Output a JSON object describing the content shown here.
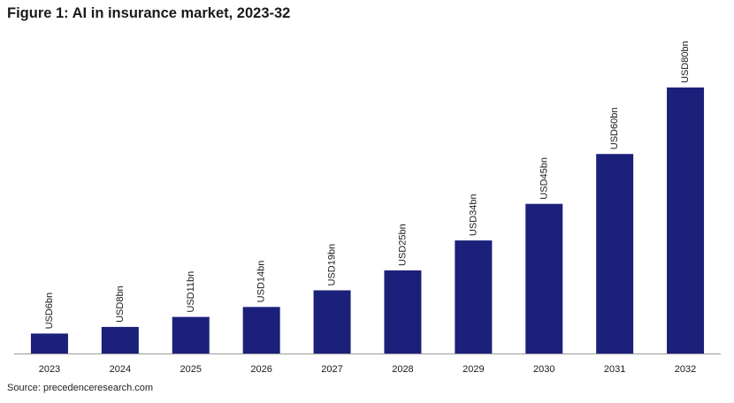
{
  "header": {
    "title": "Figure 1: AI in insurance market, 2023-32"
  },
  "footer": {
    "source": "Source: precedenceresearch.com"
  },
  "colors": {
    "bar": "#1b207a",
    "baseline": "#9a9a9a"
  },
  "chart_data": {
    "type": "bar",
    "title": "Figure 1: AI in insurance market, 2023-32",
    "xlabel": "",
    "ylabel": "",
    "categories": [
      "2023",
      "2024",
      "2025",
      "2026",
      "2027",
      "2028",
      "2029",
      "2030",
      "2031",
      "2032"
    ],
    "values": [
      6,
      8,
      11,
      14,
      19,
      25,
      34,
      45,
      60,
      80
    ],
    "data_labels": [
      "USD6bn",
      "USD8bn",
      "USD11bn",
      "USD14bn",
      "USD19bn",
      "USD25bn",
      "USD34bn",
      "USD45bn",
      "USD60bn",
      "USD80bn"
    ],
    "ylim": [
      0,
      80
    ],
    "grid": false,
    "legend": "none",
    "y_axis_visible": false
  }
}
